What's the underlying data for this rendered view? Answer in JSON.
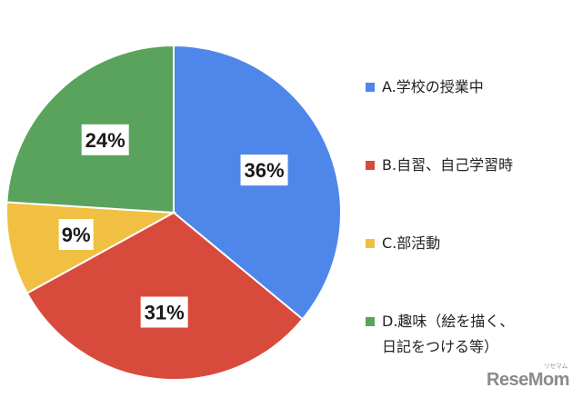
{
  "chart_data": {
    "type": "pie",
    "categories": [
      "A.学校の授業中",
      "B.自習、自己学習時",
      "C.部活動",
      "D.趣味（絵を描く、\n日記をつける等）"
    ],
    "values": [
      36,
      31,
      9,
      24
    ],
    "value_labels": [
      "36%",
      "31%",
      "9%",
      "24%"
    ],
    "colors": [
      "#4f86ea",
      "#d84b3c",
      "#f1c043",
      "#5aa35c"
    ],
    "start_angle_deg": 0,
    "direction": "clockwise",
    "legend_position": "right"
  },
  "watermark": {
    "text": "ReseMom",
    "kana": "リセマム"
  }
}
